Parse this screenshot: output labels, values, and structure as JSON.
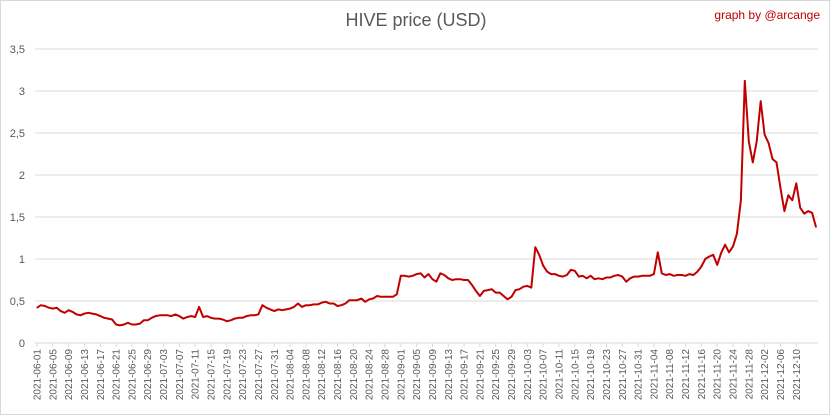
{
  "chart_data": {
    "type": "line",
    "title": "HIVE price (USD)",
    "credit": "graph by @arcange",
    "xlabel": "",
    "ylabel": "",
    "ylim": [
      0,
      3.5
    ],
    "yticks": [
      "0",
      "0,5",
      "1",
      "1,5",
      "2",
      "2,5",
      "3",
      "3,5"
    ],
    "grid": true,
    "line_color": "#c00000",
    "x_start": "2021-06-01",
    "x_end": "2021-12-13",
    "tick_every_days": 4,
    "series": [
      {
        "name": "",
        "values": [
          0.42,
          0.45,
          0.44,
          0.42,
          0.41,
          0.42,
          0.38,
          0.36,
          0.39,
          0.37,
          0.34,
          0.33,
          0.35,
          0.36,
          0.35,
          0.34,
          0.32,
          0.3,
          0.29,
          0.28,
          0.22,
          0.21,
          0.22,
          0.24,
          0.22,
          0.22,
          0.23,
          0.27,
          0.27,
          0.3,
          0.32,
          0.33,
          0.33,
          0.33,
          0.32,
          0.34,
          0.32,
          0.29,
          0.31,
          0.32,
          0.31,
          0.43,
          0.31,
          0.32,
          0.3,
          0.29,
          0.29,
          0.28,
          0.26,
          0.27,
          0.29,
          0.3,
          0.3,
          0.32,
          0.33,
          0.33,
          0.34,
          0.45,
          0.42,
          0.4,
          0.38,
          0.4,
          0.39,
          0.4,
          0.41,
          0.43,
          0.47,
          0.43,
          0.45,
          0.45,
          0.46,
          0.46,
          0.48,
          0.49,
          0.47,
          0.47,
          0.44,
          0.45,
          0.47,
          0.51,
          0.51,
          0.51,
          0.53,
          0.49,
          0.52,
          0.53,
          0.56,
          0.55,
          0.55,
          0.55,
          0.55,
          0.58,
          0.8,
          0.8,
          0.79,
          0.8,
          0.82,
          0.83,
          0.78,
          0.82,
          0.76,
          0.73,
          0.83,
          0.81,
          0.77,
          0.75,
          0.76,
          0.76,
          0.75,
          0.75,
          0.69,
          0.62,
          0.56,
          0.62,
          0.63,
          0.64,
          0.6,
          0.6,
          0.56,
          0.52,
          0.55,
          0.63,
          0.64,
          0.67,
          0.68,
          0.66,
          1.14,
          1.05,
          0.92,
          0.85,
          0.82,
          0.82,
          0.8,
          0.79,
          0.81,
          0.87,
          0.86,
          0.79,
          0.8,
          0.77,
          0.8,
          0.76,
          0.77,
          0.76,
          0.78,
          0.78,
          0.8,
          0.81,
          0.79,
          0.73,
          0.77,
          0.79,
          0.79,
          0.8,
          0.8,
          0.8,
          0.82,
          1.08,
          0.83,
          0.81,
          0.82,
          0.8,
          0.81,
          0.81,
          0.8,
          0.82,
          0.81,
          0.85,
          0.91,
          1.0,
          1.03,
          1.05,
          0.93,
          1.07,
          1.17,
          1.08,
          1.15,
          1.3,
          1.7,
          3.12,
          2.4,
          2.15,
          2.4,
          2.88,
          2.48,
          2.38,
          2.19,
          2.15,
          1.85,
          1.57,
          1.76,
          1.7,
          1.9,
          1.61,
          1.54,
          1.57,
          1.55,
          1.38
        ]
      }
    ]
  }
}
